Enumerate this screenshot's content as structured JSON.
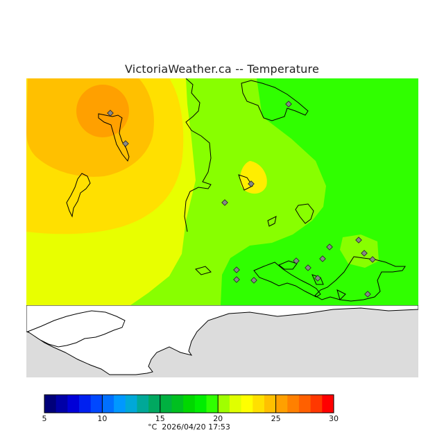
{
  "header": {
    "title": "VictoriaWeather.ca -- Temperature"
  },
  "legend": {
    "ticks": [
      "5",
      "10",
      "15",
      "20",
      "25",
      "30"
    ],
    "colors": [
      "#00007a",
      "#0000a8",
      "#0000d8",
      "#0020f0",
      "#0048ff",
      "#0070ff",
      "#0098ff",
      "#00a8d8",
      "#00a898",
      "#00a860",
      "#00b040",
      "#00c020",
      "#00d800",
      "#00ee00",
      "#30ff00",
      "#a0ff00",
      "#e0ff00",
      "#ffff00",
      "#ffe000",
      "#ffc000",
      "#ffa000",
      "#ff8000",
      "#ff6000",
      "#ff3800",
      "#ff0000"
    ]
  },
  "footer": {
    "unit": "°C",
    "timestamp": "2026/04/20 17:53"
  },
  "palette": {
    "background_gray": "#dcdcdc",
    "land_white": "#ffffff",
    "outline": "#000000",
    "station_marker": "#888888"
  }
}
